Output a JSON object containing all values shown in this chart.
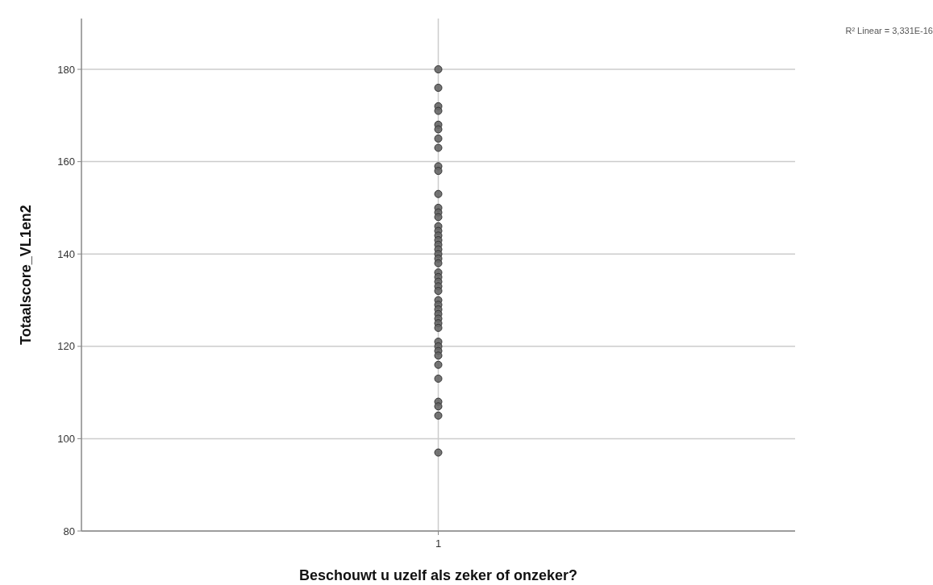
{
  "chart_data": {
    "type": "scatter",
    "xlabel": "Beschouwt u uzelf als zeker of onzeker?",
    "ylabel": "Totaalscore_VL1en2",
    "categories": [
      "1"
    ],
    "ylim": [
      80,
      191
    ],
    "yticks": [
      80,
      100,
      120,
      140,
      160,
      180
    ],
    "grid": true,
    "marker": "circle",
    "annotations": [
      "R² Linear = 3,331E-16"
    ],
    "series": [
      {
        "color": "#666666",
        "x": [
          "1",
          "1",
          "1",
          "1",
          "1",
          "1",
          "1",
          "1",
          "1",
          "1",
          "1",
          "1",
          "1",
          "1",
          "1",
          "1",
          "1",
          "1",
          "1",
          "1",
          "1",
          "1",
          "1",
          "1",
          "1",
          "1",
          "1",
          "1",
          "1",
          "1",
          "1",
          "1",
          "1",
          "1",
          "1",
          "1",
          "1",
          "1",
          "1",
          "1",
          "1",
          "1",
          "1",
          "1",
          "1"
        ],
        "values": [
          180,
          176,
          172,
          171,
          168,
          167,
          165,
          163,
          159,
          158,
          153,
          150,
          149,
          148,
          146,
          145,
          144,
          143,
          142,
          141,
          140,
          139,
          138,
          136,
          135,
          134,
          133,
          132,
          130,
          129,
          128,
          127,
          126,
          125,
          124,
          121,
          120,
          119,
          118,
          116,
          113,
          108,
          107,
          105,
          97
        ]
      }
    ]
  }
}
